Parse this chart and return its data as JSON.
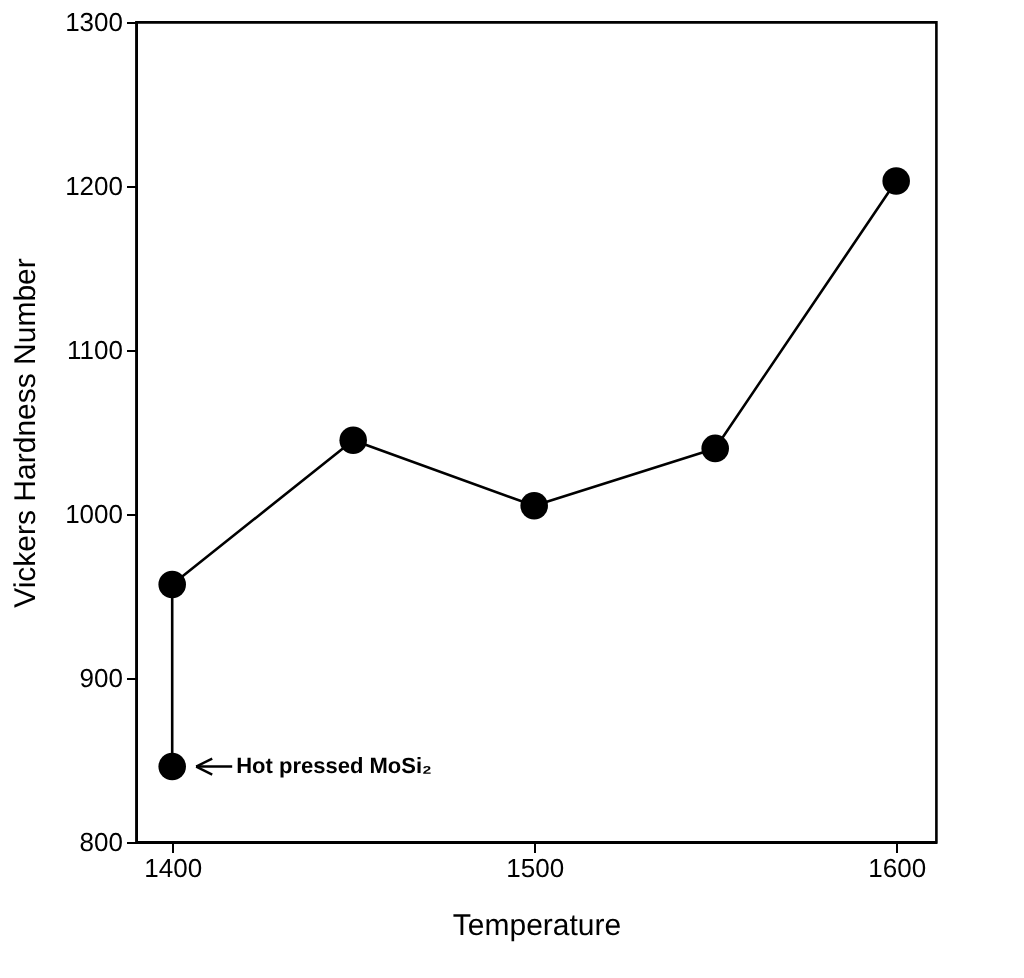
{
  "chart_data": {
    "type": "line",
    "xlabel": "Temperature",
    "ylabel": "Vickers Hardness Number",
    "x": [
      1400,
      1400,
      1450,
      1500,
      1550,
      1600
    ],
    "series": [
      {
        "color": "#000000",
        "values": [
          846,
          957,
          1045,
          1005,
          1040,
          1203
        ]
      }
    ],
    "xlim": [
      1390,
      1611
    ],
    "xticks": [
      1400,
      1500,
      1600
    ],
    "ylim": [
      800,
      1300
    ],
    "yticks": [
      800,
      900,
      1000,
      1100,
      1200,
      1300
    ],
    "grid": false,
    "marker": "circle",
    "line_style": "solid",
    "annotations": [
      {
        "text": "Hot pressed MoSi₂",
        "x": 1400,
        "y": 846
      }
    ]
  }
}
